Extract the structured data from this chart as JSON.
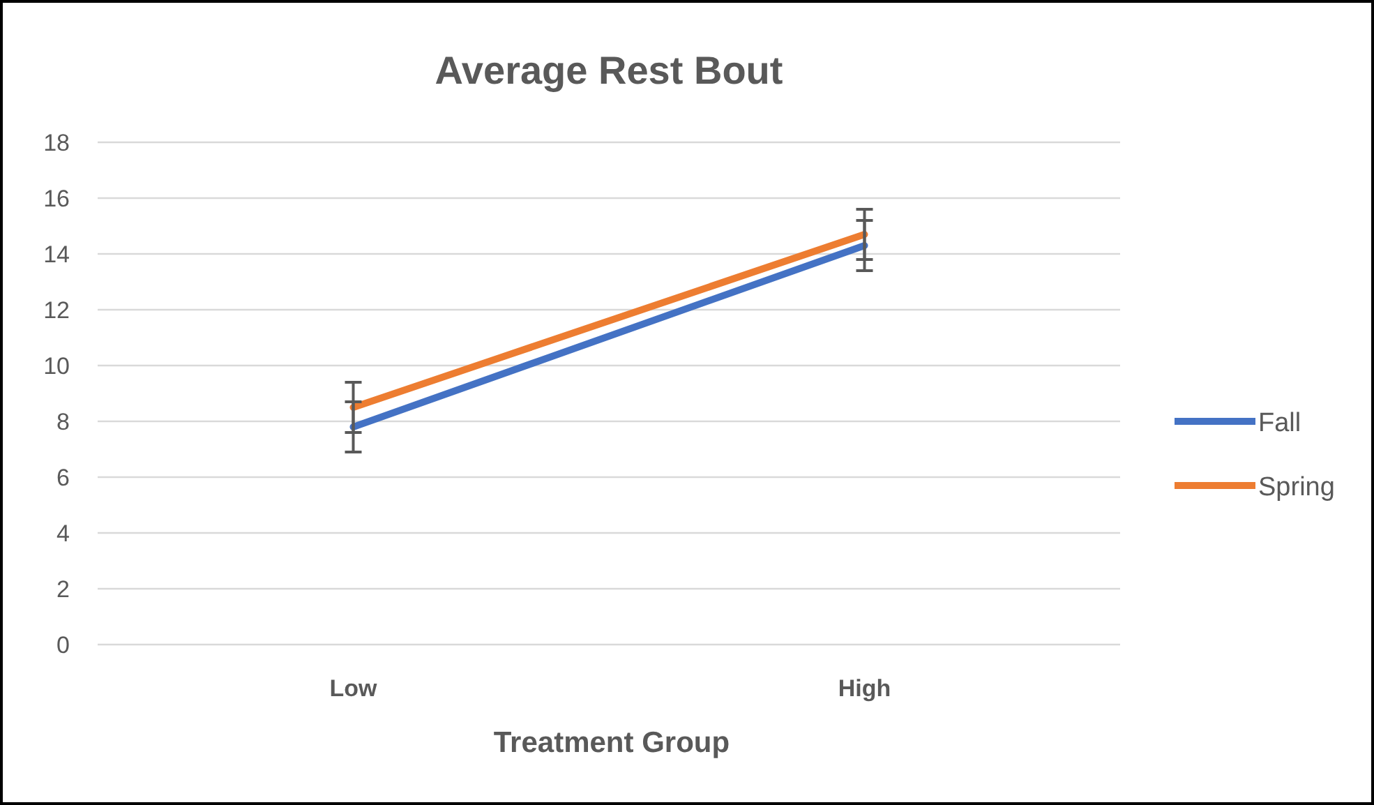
{
  "chart_data": {
    "type": "line",
    "title": "Average Rest Bout",
    "xlabel": "Treatment Group",
    "categories": [
      "Low",
      "High"
    ],
    "ylim": [
      0,
      18
    ],
    "yticks": [
      0,
      2,
      4,
      6,
      8,
      10,
      12,
      14,
      16,
      18
    ],
    "grid": "y",
    "legend": "right",
    "marker": "none",
    "line_style": "solid",
    "series": [
      {
        "name": "Fall",
        "color": "#4472c4",
        "values": [
          7.8,
          14.3
        ],
        "errors": [
          0.9,
          0.9
        ]
      },
      {
        "name": "Spring",
        "color": "#ed7d31",
        "values": [
          8.5,
          14.7
        ],
        "errors": [
          0.9,
          0.9
        ]
      }
    ]
  }
}
